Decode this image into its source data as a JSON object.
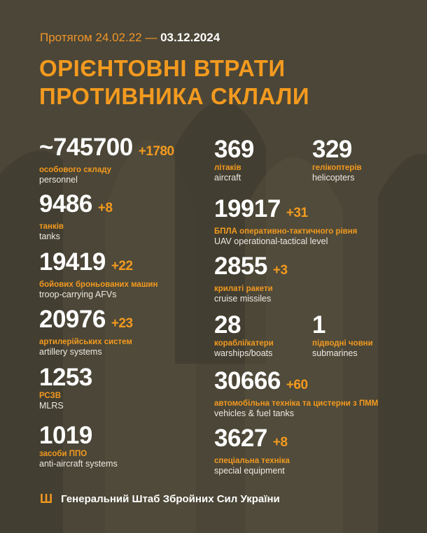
{
  "header": {
    "period_prefix": "Протягом 24.02.22 —",
    "period_date": "03.12.2024",
    "title_line1": "ОРІЄНТОВНІ ВТРАТИ",
    "title_line2": "ПРОТИВНИКА СКЛАЛИ"
  },
  "stats": [
    {
      "id": "personnel",
      "value": "~745700",
      "delta": "+1780",
      "ua": "особового складу",
      "en": "personnel"
    },
    {
      "id": "tanks",
      "value": "9486",
      "delta": "+8",
      "ua": "танків",
      "en": "tanks"
    },
    {
      "id": "afv",
      "value": "19419",
      "delta": "+22",
      "ua": "бойових броньованих машин",
      "en": "troop-carrying AFVs"
    },
    {
      "id": "artillery",
      "value": "20976",
      "delta": "+23",
      "ua": "артилерійських систем",
      "en": "artillery systems"
    },
    {
      "id": "mlrs",
      "value": "1253",
      "delta": "",
      "ua": "РСЗВ",
      "en": "MLRS"
    },
    {
      "id": "anti-aircraft",
      "value": "1019",
      "delta": "",
      "ua": "засоби ППО",
      "en": "anti-aircraft systems"
    },
    {
      "id": "aircraft",
      "value": "369",
      "delta": "",
      "ua": "літаків",
      "en": "aircraft"
    },
    {
      "id": "helicopters",
      "value": "329",
      "delta": "",
      "ua": "гелікоптерів",
      "en": "helicopters"
    },
    {
      "id": "uav",
      "value": "19917",
      "delta": "+31",
      "ua": "БПЛА оперативно-тактичного рівня",
      "en": "UAV operational-tactical level"
    },
    {
      "id": "cruise-missiles",
      "value": "2855",
      "delta": "+3",
      "ua": "крилаті ракети",
      "en": "cruise missiles"
    },
    {
      "id": "warships",
      "value": "28",
      "delta": "",
      "ua": "кораблі/катери",
      "en": "warships/boats"
    },
    {
      "id": "submarines",
      "value": "1",
      "delta": "",
      "ua": "підводні човни",
      "en": "submarines"
    },
    {
      "id": "vehicles",
      "value": "30666",
      "delta": "+60",
      "ua": "автомобільна техніка та цистерни з ПММ",
      "en": "vehicles & fuel tanks"
    },
    {
      "id": "special-equipment",
      "value": "3627",
      "delta": "+8",
      "ua": "спеціальна техніка",
      "en": "special equipment"
    }
  ],
  "footer": {
    "trident_glyph": "Ш",
    "org": "Генеральний Штаб Збройних Сил України"
  },
  "colors": {
    "accent": "#f39a1f",
    "background": "#4b4637",
    "text": "#ffffff"
  }
}
